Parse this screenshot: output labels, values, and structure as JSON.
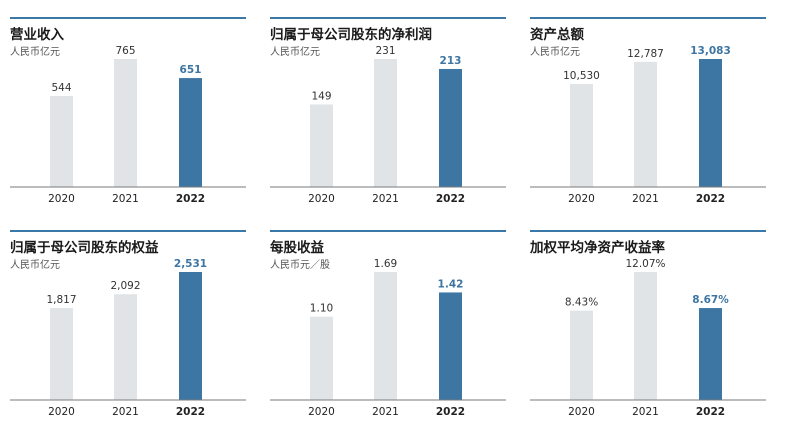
{
  "colors": {
    "highlight": "#3d75a3",
    "normal": "#e1e4e7",
    "axis": "#7a7a7a",
    "rule": "#3a78a8"
  },
  "chart_data": [
    {
      "type": "bar",
      "title": "营业收入",
      "unit": "人民币亿元",
      "categories": [
        "2020",
        "2021",
        "2022"
      ],
      "values": [
        544,
        765,
        651
      ],
      "labels": [
        "544",
        "765",
        "651"
      ],
      "highlight_index": 2
    },
    {
      "type": "bar",
      "title": "归属于母公司股东的净利润",
      "unit": "人民币亿元",
      "categories": [
        "2020",
        "2021",
        "2022"
      ],
      "values": [
        149,
        231,
        213
      ],
      "labels": [
        "149",
        "231",
        "213"
      ],
      "highlight_index": 2
    },
    {
      "type": "bar",
      "title": "资产总额",
      "unit": "人民币亿元",
      "categories": [
        "2020",
        "2021",
        "2022"
      ],
      "values": [
        10530,
        12787,
        13083
      ],
      "labels": [
        "10,530",
        "12,787",
        "13,083"
      ],
      "highlight_index": 2
    },
    {
      "type": "bar",
      "title": "归属于母公司股东的权益",
      "unit": "人民币亿元",
      "categories": [
        "2020",
        "2021",
        "2022"
      ],
      "values": [
        1817,
        2092,
        2531
      ],
      "labels": [
        "1,817",
        "2,092",
        "2,531"
      ],
      "highlight_index": 2
    },
    {
      "type": "bar",
      "title": "每股收益",
      "unit": "人民币元／股",
      "categories": [
        "2020",
        "2021",
        "2022"
      ],
      "values": [
        1.1,
        1.69,
        1.42
      ],
      "labels": [
        "1.10",
        "1.69",
        "1.42"
      ],
      "highlight_index": 2
    },
    {
      "type": "bar",
      "title": "加权平均净资产收益率",
      "unit": "",
      "categories": [
        "2020",
        "2021",
        "2022"
      ],
      "values": [
        8.43,
        12.07,
        8.67
      ],
      "labels": [
        "8.43%",
        "12.07%",
        "8.67%"
      ],
      "highlight_index": 2
    }
  ]
}
